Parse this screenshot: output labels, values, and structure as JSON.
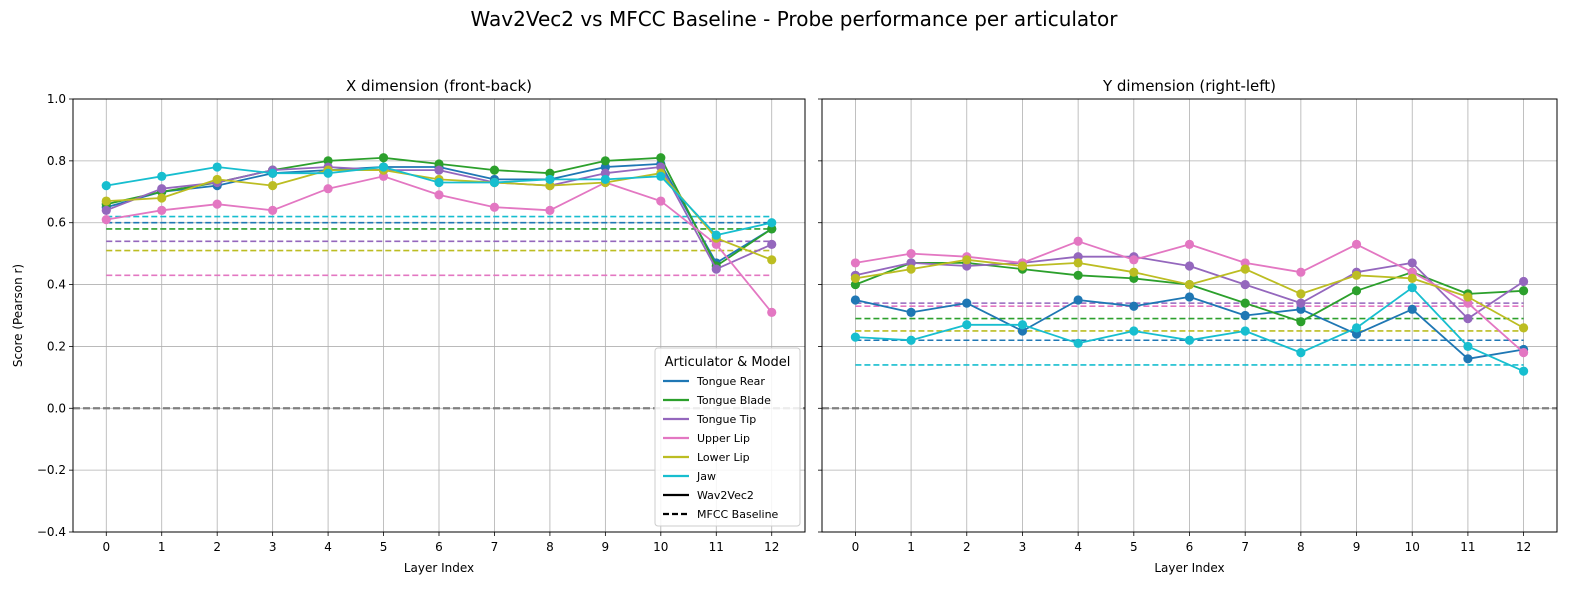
{
  "figure": {
    "suptitle": "Wav2Vec2 vs MFCC Baseline - Probe performance per articulator"
  },
  "colors": {
    "Tongue Rear": "#1f77b4",
    "Tongue Blade": "#2ca02c",
    "Tongue Tip": "#9467bd",
    "Upper Lip": "#e377c2",
    "Lower Lip": "#bcbd22",
    "Jaw": "#17becf"
  },
  "legend": {
    "title": "Articulator & Model",
    "location": "lower right",
    "entries": [
      {
        "label": "Tongue Rear",
        "color": "#1f77b4",
        "style": "solid"
      },
      {
        "label": "Tongue Blade",
        "color": "#2ca02c",
        "style": "solid"
      },
      {
        "label": "Tongue Tip",
        "color": "#9467bd",
        "style": "solid"
      },
      {
        "label": "Upper Lip",
        "color": "#e377c2",
        "style": "solid"
      },
      {
        "label": "Lower Lip",
        "color": "#bcbd22",
        "style": "solid"
      },
      {
        "label": "Jaw",
        "color": "#17becf",
        "style": "solid"
      },
      {
        "label": "Wav2Vec2",
        "color": "#000000",
        "style": "solid"
      },
      {
        "label": "MFCC Baseline",
        "color": "#000000",
        "style": "dashed"
      }
    ]
  },
  "chart_data": [
    {
      "type": "line",
      "title": "X dimension (front-back)",
      "xlabel": "Layer Index",
      "ylabel": "Score (Pearson r)",
      "x": [
        0,
        1,
        2,
        3,
        4,
        5,
        6,
        7,
        8,
        9,
        10,
        11,
        12
      ],
      "xticks": [
        "0",
        "1",
        "2",
        "3",
        "4",
        "5",
        "6",
        "7",
        "8",
        "9",
        "10",
        "11",
        "12"
      ],
      "yticks": [
        "1.0",
        "0.8",
        "0.6",
        "0.4",
        "0.2",
        "0.0",
        "−0.2",
        "−0.4"
      ],
      "ytick_values": [
        1.0,
        0.8,
        0.6,
        0.4,
        0.2,
        0.0,
        -0.2,
        -0.4
      ],
      "ylim": [
        -0.4,
        1.0
      ],
      "xlim": [
        -0.6,
        12.6
      ],
      "grid": true,
      "zero_line": true,
      "series": [
        {
          "name": "Tongue Rear",
          "values": [
            0.65,
            0.7,
            0.72,
            0.76,
            0.77,
            0.78,
            0.78,
            0.74,
            0.74,
            0.78,
            0.79,
            0.47,
            0.58
          ]
        },
        {
          "name": "Tongue Blade",
          "values": [
            0.66,
            0.7,
            0.73,
            0.77,
            0.8,
            0.81,
            0.79,
            0.77,
            0.76,
            0.8,
            0.81,
            0.46,
            0.58
          ]
        },
        {
          "name": "Tongue Tip",
          "values": [
            0.64,
            0.71,
            0.73,
            0.77,
            0.78,
            0.77,
            0.77,
            0.73,
            0.72,
            0.76,
            0.78,
            0.45,
            0.53
          ]
        },
        {
          "name": "Upper Lip",
          "values": [
            0.61,
            0.64,
            0.66,
            0.64,
            0.71,
            0.75,
            0.69,
            0.65,
            0.64,
            0.73,
            0.67,
            0.53,
            0.31
          ]
        },
        {
          "name": "Lower Lip",
          "values": [
            0.67,
            0.68,
            0.74,
            0.72,
            0.77,
            0.77,
            0.74,
            0.73,
            0.72,
            0.73,
            0.76,
            0.55,
            0.48
          ]
        },
        {
          "name": "Jaw",
          "values": [
            0.72,
            0.75,
            0.78,
            0.76,
            0.76,
            0.78,
            0.73,
            0.73,
            0.74,
            0.74,
            0.75,
            0.56,
            0.6
          ]
        }
      ],
      "baselines": [
        {
          "name": "Tongue Rear",
          "value": 0.6
        },
        {
          "name": "Tongue Blade",
          "value": 0.58
        },
        {
          "name": "Tongue Tip",
          "value": 0.54
        },
        {
          "name": "Upper Lip",
          "value": 0.43
        },
        {
          "name": "Lower Lip",
          "value": 0.51
        },
        {
          "name": "Jaw",
          "value": 0.62
        }
      ]
    },
    {
      "type": "line",
      "title": "Y dimension (right-left)",
      "xlabel": "Layer Index",
      "ylabel": "",
      "x": [
        0,
        1,
        2,
        3,
        4,
        5,
        6,
        7,
        8,
        9,
        10,
        11,
        12
      ],
      "xticks": [
        "0",
        "1",
        "2",
        "3",
        "4",
        "5",
        "6",
        "7",
        "8",
        "9",
        "10",
        "11",
        "12"
      ],
      "ylim": [
        -0.4,
        1.0
      ],
      "xlim": [
        -0.6,
        12.6
      ],
      "grid": true,
      "zero_line": true,
      "shared_y": true,
      "series": [
        {
          "name": "Tongue Rear",
          "values": [
            0.35,
            0.31,
            0.34,
            0.25,
            0.35,
            0.33,
            0.36,
            0.3,
            0.32,
            0.24,
            0.32,
            0.16,
            0.19
          ]
        },
        {
          "name": "Tongue Blade",
          "values": [
            0.4,
            0.47,
            0.47,
            0.45,
            0.43,
            0.42,
            0.4,
            0.34,
            0.28,
            0.38,
            0.44,
            0.37,
            0.38
          ]
        },
        {
          "name": "Tongue Tip",
          "values": [
            0.43,
            0.47,
            0.46,
            0.47,
            0.49,
            0.49,
            0.46,
            0.4,
            0.34,
            0.44,
            0.47,
            0.29,
            0.41
          ]
        },
        {
          "name": "Upper Lip",
          "values": [
            0.47,
            0.5,
            0.49,
            0.47,
            0.54,
            0.48,
            0.53,
            0.47,
            0.44,
            0.53,
            0.44,
            0.34,
            0.18
          ]
        },
        {
          "name": "Lower Lip",
          "values": [
            0.42,
            0.45,
            0.48,
            0.46,
            0.47,
            0.44,
            0.4,
            0.45,
            0.37,
            0.43,
            0.42,
            0.36,
            0.26
          ]
        },
        {
          "name": "Jaw",
          "values": [
            0.23,
            0.22,
            0.27,
            0.27,
            0.21,
            0.25,
            0.22,
            0.25,
            0.18,
            0.26,
            0.39,
            0.2,
            0.12
          ]
        }
      ],
      "baselines": [
        {
          "name": "Tongue Rear",
          "value": 0.22
        },
        {
          "name": "Tongue Blade",
          "value": 0.29
        },
        {
          "name": "Tongue Tip",
          "value": 0.34
        },
        {
          "name": "Upper Lip",
          "value": 0.33
        },
        {
          "name": "Lower Lip",
          "value": 0.25
        },
        {
          "name": "Jaw",
          "value": 0.14
        }
      ]
    }
  ]
}
